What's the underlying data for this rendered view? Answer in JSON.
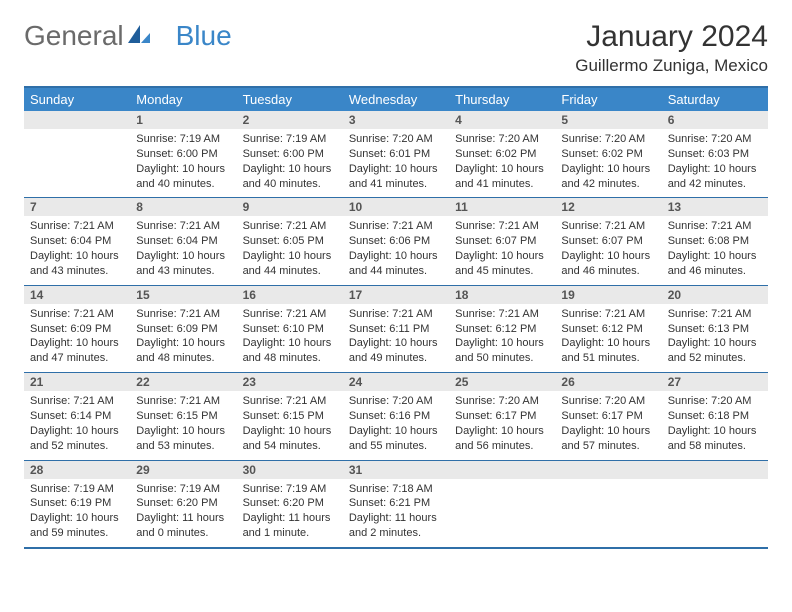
{
  "logo": {
    "text1": "General",
    "text2": "Blue"
  },
  "title": "January 2024",
  "location": "Guillermo Zuniga, Mexico",
  "colors": {
    "header_bg": "#3a86c8",
    "header_text": "#ffffff",
    "border": "#2f6fa8",
    "daynum_bg": "#e9e9e9",
    "body_text": "#333333",
    "logo_gray": "#6a6a6a",
    "logo_blue": "#3a86c8"
  },
  "day_headers": [
    "Sunday",
    "Monday",
    "Tuesday",
    "Wednesday",
    "Thursday",
    "Friday",
    "Saturday"
  ],
  "weeks": [
    [
      {
        "num": "",
        "sunrise": "",
        "sunset": "",
        "daylight1": "",
        "daylight2": ""
      },
      {
        "num": "1",
        "sunrise": "Sunrise: 7:19 AM",
        "sunset": "Sunset: 6:00 PM",
        "daylight1": "Daylight: 10 hours",
        "daylight2": "and 40 minutes."
      },
      {
        "num": "2",
        "sunrise": "Sunrise: 7:19 AM",
        "sunset": "Sunset: 6:00 PM",
        "daylight1": "Daylight: 10 hours",
        "daylight2": "and 40 minutes."
      },
      {
        "num": "3",
        "sunrise": "Sunrise: 7:20 AM",
        "sunset": "Sunset: 6:01 PM",
        "daylight1": "Daylight: 10 hours",
        "daylight2": "and 41 minutes."
      },
      {
        "num": "4",
        "sunrise": "Sunrise: 7:20 AM",
        "sunset": "Sunset: 6:02 PM",
        "daylight1": "Daylight: 10 hours",
        "daylight2": "and 41 minutes."
      },
      {
        "num": "5",
        "sunrise": "Sunrise: 7:20 AM",
        "sunset": "Sunset: 6:02 PM",
        "daylight1": "Daylight: 10 hours",
        "daylight2": "and 42 minutes."
      },
      {
        "num": "6",
        "sunrise": "Sunrise: 7:20 AM",
        "sunset": "Sunset: 6:03 PM",
        "daylight1": "Daylight: 10 hours",
        "daylight2": "and 42 minutes."
      }
    ],
    [
      {
        "num": "7",
        "sunrise": "Sunrise: 7:21 AM",
        "sunset": "Sunset: 6:04 PM",
        "daylight1": "Daylight: 10 hours",
        "daylight2": "and 43 minutes."
      },
      {
        "num": "8",
        "sunrise": "Sunrise: 7:21 AM",
        "sunset": "Sunset: 6:04 PM",
        "daylight1": "Daylight: 10 hours",
        "daylight2": "and 43 minutes."
      },
      {
        "num": "9",
        "sunrise": "Sunrise: 7:21 AM",
        "sunset": "Sunset: 6:05 PM",
        "daylight1": "Daylight: 10 hours",
        "daylight2": "and 44 minutes."
      },
      {
        "num": "10",
        "sunrise": "Sunrise: 7:21 AM",
        "sunset": "Sunset: 6:06 PM",
        "daylight1": "Daylight: 10 hours",
        "daylight2": "and 44 minutes."
      },
      {
        "num": "11",
        "sunrise": "Sunrise: 7:21 AM",
        "sunset": "Sunset: 6:07 PM",
        "daylight1": "Daylight: 10 hours",
        "daylight2": "and 45 minutes."
      },
      {
        "num": "12",
        "sunrise": "Sunrise: 7:21 AM",
        "sunset": "Sunset: 6:07 PM",
        "daylight1": "Daylight: 10 hours",
        "daylight2": "and 46 minutes."
      },
      {
        "num": "13",
        "sunrise": "Sunrise: 7:21 AM",
        "sunset": "Sunset: 6:08 PM",
        "daylight1": "Daylight: 10 hours",
        "daylight2": "and 46 minutes."
      }
    ],
    [
      {
        "num": "14",
        "sunrise": "Sunrise: 7:21 AM",
        "sunset": "Sunset: 6:09 PM",
        "daylight1": "Daylight: 10 hours",
        "daylight2": "and 47 minutes."
      },
      {
        "num": "15",
        "sunrise": "Sunrise: 7:21 AM",
        "sunset": "Sunset: 6:09 PM",
        "daylight1": "Daylight: 10 hours",
        "daylight2": "and 48 minutes."
      },
      {
        "num": "16",
        "sunrise": "Sunrise: 7:21 AM",
        "sunset": "Sunset: 6:10 PM",
        "daylight1": "Daylight: 10 hours",
        "daylight2": "and 48 minutes."
      },
      {
        "num": "17",
        "sunrise": "Sunrise: 7:21 AM",
        "sunset": "Sunset: 6:11 PM",
        "daylight1": "Daylight: 10 hours",
        "daylight2": "and 49 minutes."
      },
      {
        "num": "18",
        "sunrise": "Sunrise: 7:21 AM",
        "sunset": "Sunset: 6:12 PM",
        "daylight1": "Daylight: 10 hours",
        "daylight2": "and 50 minutes."
      },
      {
        "num": "19",
        "sunrise": "Sunrise: 7:21 AM",
        "sunset": "Sunset: 6:12 PM",
        "daylight1": "Daylight: 10 hours",
        "daylight2": "and 51 minutes."
      },
      {
        "num": "20",
        "sunrise": "Sunrise: 7:21 AM",
        "sunset": "Sunset: 6:13 PM",
        "daylight1": "Daylight: 10 hours",
        "daylight2": "and 52 minutes."
      }
    ],
    [
      {
        "num": "21",
        "sunrise": "Sunrise: 7:21 AM",
        "sunset": "Sunset: 6:14 PM",
        "daylight1": "Daylight: 10 hours",
        "daylight2": "and 52 minutes."
      },
      {
        "num": "22",
        "sunrise": "Sunrise: 7:21 AM",
        "sunset": "Sunset: 6:15 PM",
        "daylight1": "Daylight: 10 hours",
        "daylight2": "and 53 minutes."
      },
      {
        "num": "23",
        "sunrise": "Sunrise: 7:21 AM",
        "sunset": "Sunset: 6:15 PM",
        "daylight1": "Daylight: 10 hours",
        "daylight2": "and 54 minutes."
      },
      {
        "num": "24",
        "sunrise": "Sunrise: 7:20 AM",
        "sunset": "Sunset: 6:16 PM",
        "daylight1": "Daylight: 10 hours",
        "daylight2": "and 55 minutes."
      },
      {
        "num": "25",
        "sunrise": "Sunrise: 7:20 AM",
        "sunset": "Sunset: 6:17 PM",
        "daylight1": "Daylight: 10 hours",
        "daylight2": "and 56 minutes."
      },
      {
        "num": "26",
        "sunrise": "Sunrise: 7:20 AM",
        "sunset": "Sunset: 6:17 PM",
        "daylight1": "Daylight: 10 hours",
        "daylight2": "and 57 minutes."
      },
      {
        "num": "27",
        "sunrise": "Sunrise: 7:20 AM",
        "sunset": "Sunset: 6:18 PM",
        "daylight1": "Daylight: 10 hours",
        "daylight2": "and 58 minutes."
      }
    ],
    [
      {
        "num": "28",
        "sunrise": "Sunrise: 7:19 AM",
        "sunset": "Sunset: 6:19 PM",
        "daylight1": "Daylight: 10 hours",
        "daylight2": "and 59 minutes."
      },
      {
        "num": "29",
        "sunrise": "Sunrise: 7:19 AM",
        "sunset": "Sunset: 6:20 PM",
        "daylight1": "Daylight: 11 hours",
        "daylight2": "and 0 minutes."
      },
      {
        "num": "30",
        "sunrise": "Sunrise: 7:19 AM",
        "sunset": "Sunset: 6:20 PM",
        "daylight1": "Daylight: 11 hours",
        "daylight2": "and 1 minute."
      },
      {
        "num": "31",
        "sunrise": "Sunrise: 7:18 AM",
        "sunset": "Sunset: 6:21 PM",
        "daylight1": "Daylight: 11 hours",
        "daylight2": "and 2 minutes."
      },
      {
        "num": "",
        "sunrise": "",
        "sunset": "",
        "daylight1": "",
        "daylight2": ""
      },
      {
        "num": "",
        "sunrise": "",
        "sunset": "",
        "daylight1": "",
        "daylight2": ""
      },
      {
        "num": "",
        "sunrise": "",
        "sunset": "",
        "daylight1": "",
        "daylight2": ""
      }
    ]
  ]
}
